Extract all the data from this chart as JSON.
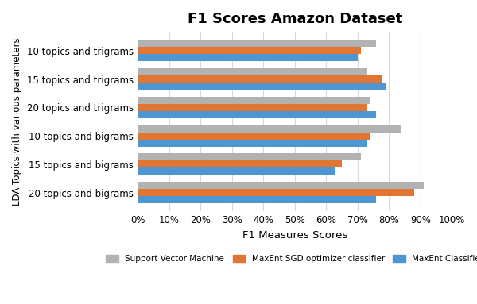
{
  "title": "F1 Scores Amazon Dataset",
  "xlabel": "F1 Measures Scores",
  "ylabel": "LDA Topics with various parameters",
  "categories": [
    "20 topics and bigrams",
    "15 topics and bigrams",
    "10 topics and bigrams",
    "20 topics and trigrams",
    "15 topics and trigrams",
    "10 topics and trigrams"
  ],
  "series": {
    "Support Vector Machine": [
      0.91,
      0.71,
      0.84,
      0.74,
      0.73,
      0.76
    ],
    "MaxEnt SGD optimizer classifier": [
      0.88,
      0.65,
      0.74,
      0.73,
      0.78,
      0.71
    ],
    "MaxEnt Classifier": [
      0.76,
      0.63,
      0.73,
      0.76,
      0.79,
      0.7
    ]
  },
  "colors": {
    "Support Vector Machine": "#b2b2b2",
    "MaxEnt SGD optimizer classifier": "#e07534",
    "MaxEnt Classifier": "#4d96d4"
  },
  "xlim": [
    0,
    1.0
  ],
  "xticks": [
    0.0,
    0.1,
    0.2,
    0.3,
    0.4,
    0.5,
    0.6,
    0.7,
    0.8,
    0.9,
    1.0
  ],
  "xticklabels": [
    "0%",
    "10%",
    "20%",
    "30%",
    "40%",
    "50%",
    "60%",
    "70%",
    "80%",
    "90%",
    "100%"
  ],
  "bar_height": 0.25,
  "background_color": "#ffffff",
  "grid_color": "#d9d9d9"
}
